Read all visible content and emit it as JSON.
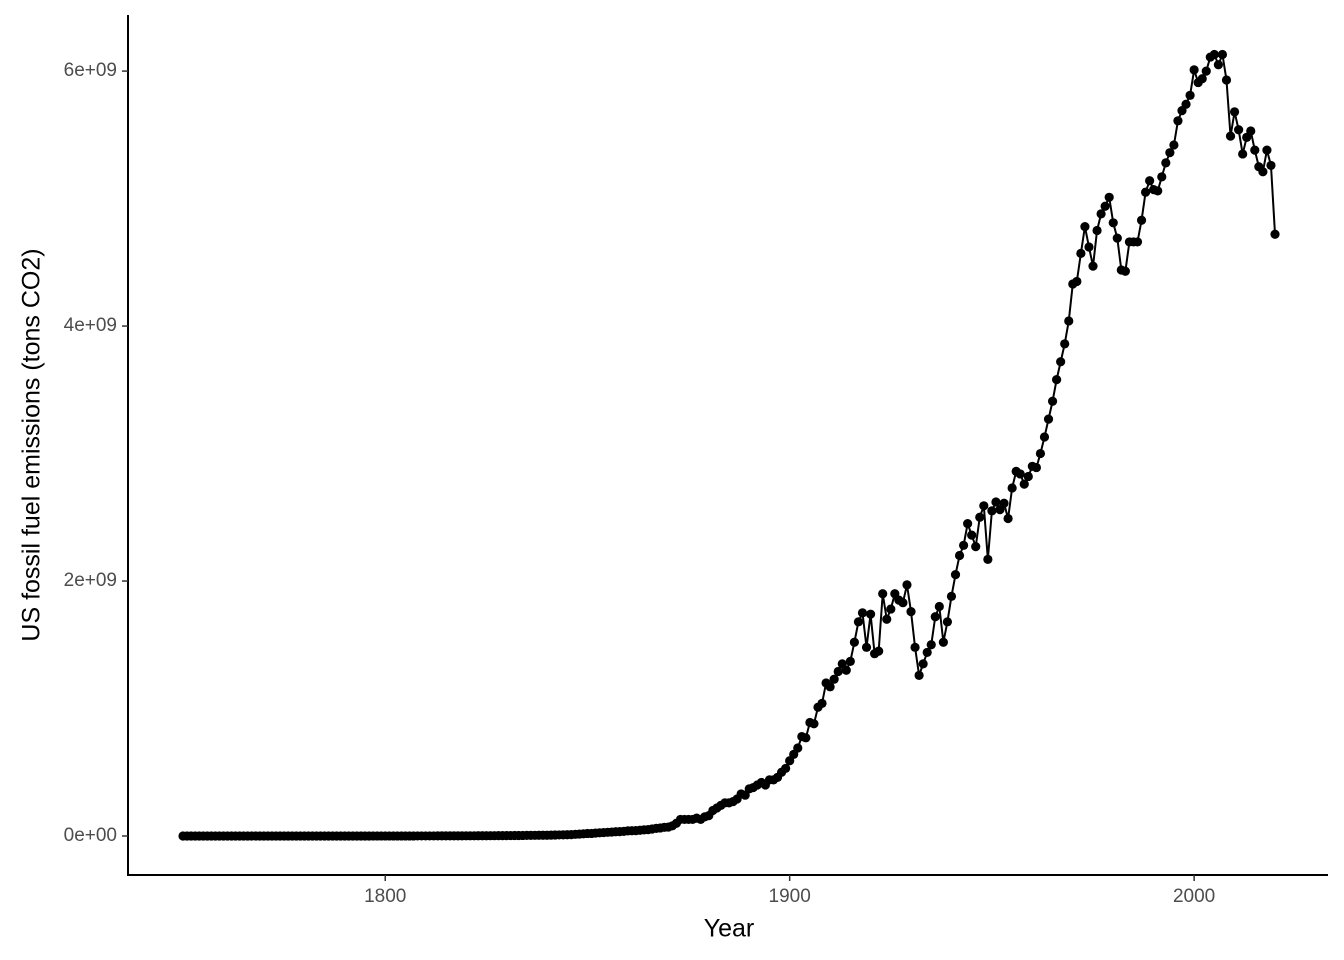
{
  "chart_data": {
    "type": "line",
    "x_label": "Year",
    "y_label": "US fossil fuel emissions (tons CO2)",
    "color": "#000000",
    "markers": true,
    "xlim": [
      1736.4,
      2033.1
    ],
    "ylim": [
      -306000000.0,
      6440000000.0
    ],
    "xticks": [
      1800,
      1900,
      2000
    ],
    "yticks": [
      {
        "value": 0,
        "label": "0e+00"
      },
      {
        "value": 2000000000.0,
        "label": "2e+09"
      },
      {
        "value": 4000000000.0,
        "label": "4e+09"
      },
      {
        "value": 6000000000.0,
        "label": "6e+09"
      }
    ],
    "x": [
      1750,
      1751,
      1752,
      1753,
      1754,
      1755,
      1756,
      1757,
      1758,
      1759,
      1760,
      1761,
      1762,
      1763,
      1764,
      1765,
      1766,
      1767,
      1768,
      1769,
      1770,
      1771,
      1772,
      1773,
      1774,
      1775,
      1776,
      1777,
      1778,
      1779,
      1780,
      1781,
      1782,
      1783,
      1784,
      1785,
      1786,
      1787,
      1788,
      1789,
      1790,
      1791,
      1792,
      1793,
      1794,
      1795,
      1796,
      1797,
      1798,
      1799,
      1800,
      1801,
      1802,
      1803,
      1804,
      1805,
      1806,
      1807,
      1808,
      1809,
      1810,
      1811,
      1812,
      1813,
      1814,
      1815,
      1816,
      1817,
      1818,
      1819,
      1820,
      1821,
      1822,
      1823,
      1824,
      1825,
      1826,
      1827,
      1828,
      1829,
      1830,
      1831,
      1832,
      1833,
      1834,
      1835,
      1836,
      1837,
      1838,
      1839,
      1840,
      1841,
      1842,
      1843,
      1844,
      1845,
      1846,
      1847,
      1848,
      1849,
      1850,
      1851,
      1852,
      1853,
      1854,
      1855,
      1856,
      1857,
      1858,
      1859,
      1860,
      1861,
      1862,
      1863,
      1864,
      1865,
      1866,
      1867,
      1868,
      1869,
      1870,
      1871,
      1872,
      1873,
      1874,
      1875,
      1876,
      1877,
      1878,
      1879,
      1880,
      1881,
      1882,
      1883,
      1884,
      1885,
      1886,
      1887,
      1888,
      1889,
      1890,
      1891,
      1892,
      1893,
      1894,
      1895,
      1896,
      1897,
      1898,
      1899,
      1900,
      1901,
      1902,
      1903,
      1904,
      1905,
      1906,
      1907,
      1908,
      1909,
      1910,
      1911,
      1912,
      1913,
      1914,
      1915,
      1916,
      1917,
      1918,
      1919,
      1920,
      1921,
      1922,
      1923,
      1924,
      1925,
      1926,
      1927,
      1928,
      1929,
      1930,
      1931,
      1932,
      1933,
      1934,
      1935,
      1936,
      1937,
      1938,
      1939,
      1940,
      1941,
      1942,
      1943,
      1944,
      1945,
      1946,
      1947,
      1948,
      1949,
      1950,
      1951,
      1952,
      1953,
      1954,
      1955,
      1956,
      1957,
      1958,
      1959,
      1960,
      1961,
      1962,
      1963,
      1964,
      1965,
      1966,
      1967,
      1968,
      1969,
      1970,
      1971,
      1972,
      1973,
      1974,
      1975,
      1976,
      1977,
      1978,
      1979,
      1980,
      1981,
      1982,
      1983,
      1984,
      1985,
      1986,
      1987,
      1988,
      1989,
      1990,
      1991,
      1992,
      1993,
      1994,
      1995,
      1996,
      1997,
      1998,
      1999,
      2000,
      2001,
      2002,
      2003,
      2004,
      2005,
      2006,
      2007,
      2008,
      2009,
      2010,
      2011,
      2012,
      2013,
      2014,
      2015,
      2016,
      2017,
      2018,
      2019,
      2020
    ],
    "values": [
      10000.0,
      10000.0,
      10000.0,
      10000.0,
      10000.0,
      10000.0,
      10000.0,
      10000.0,
      10000.0,
      10000.0,
      20000.0,
      20000.0,
      20000.0,
      20000.0,
      20000.0,
      20000.0,
      20000.0,
      20000.0,
      20000.0,
      20000.0,
      30000.0,
      30000.0,
      30000.0,
      30000.0,
      30000.0,
      30000.0,
      30000.0,
      30000.0,
      30000.0,
      30000.0,
      50000.0,
      50000.0,
      50000.0,
      50000.0,
      50000.0,
      50000.0,
      50000.0,
      50000.0,
      50000.0,
      50000.0,
      100000.0,
      120000.0,
      140000.0,
      160000.0,
      180000.0,
      200000.0,
      210000.0,
      220000.0,
      230000.0,
      240000.0,
      250000.0,
      270000.0,
      300000.0,
      320000.0,
      350000.0,
      380000.0,
      400000.0,
      430000.0,
      460000.0,
      480000.0,
      500000.0,
      550000.0,
      600000.0,
      650000.0,
      700000.0,
      750000.0,
      800000.0,
      900000.0,
      1000000.0,
      1100000.0,
      1200000.0,
      1300000.0,
      1500000.0,
      1600000.0,
      1800000.0,
      2000000.0,
      2200000.0,
      2400000.0,
      2600000.0,
      2800000.0,
      3000000.0,
      3300000.0,
      3600000.0,
      4000000.0,
      4300000.0,
      4600000.0,
      5000000.0,
      5300000.0,
      5600000.0,
      5900000.0,
      6000000.0,
      6800000.0,
      7500000.0,
      8300000.0,
      9000000.0,
      10000000.0,
      11000000.0,
      13000000.0,
      15000000.0,
      17000000.0,
      20000000.0,
      20000000.0,
      23000000.0,
      25000000.0,
      27000000.0,
      29000000.0,
      31000000.0,
      33000000.0,
      34000000.0,
      36000000.0,
      40000000.0,
      41000000.0,
      42000000.0,
      45000000.0,
      48000000.0,
      50000000.0,
      55000000.0,
      60000000.0,
      63000000.0,
      68000000.0,
      70000000.0,
      80000000.0,
      100000000.0,
      130000000.0,
      130000000.0,
      130000000.0,
      130000000.0,
      140000000.0,
      130000000.0,
      150000000.0,
      160000000.0,
      200000000.0,
      220000000.0,
      240000000.0,
      260000000.0,
      260000000.0,
      270000000.0,
      290000000.0,
      330000000.0,
      320000000.0,
      370000000.0,
      380000000.0,
      400000000.0,
      420000000.0,
      400000000.0,
      440000000.0,
      440000000.0,
      460000000.0,
      500000000.0,
      530000000.0,
      590000000.0,
      640000000.0,
      690000000.0,
      780000000.0,
      770000000.0,
      890000000.0,
      880000000.0,
      1010000000.0,
      1040000000.0,
      1200000000.0,
      1170000000.0,
      1230000000.0,
      1290000000.0,
      1350000000.0,
      1300000000.0,
      1370000000.0,
      1520000000.0,
      1680000000.0,
      1750000000.0,
      1480000000.0,
      1740000000.0,
      1430000000.0,
      1450000000.0,
      1900000000.0,
      1700000000.0,
      1780000000.0,
      1900000000.0,
      1850000000.0,
      1830000000.0,
      1970000000.0,
      1760000000.0,
      1480000000.0,
      1260000000.0,
      1350000000.0,
      1440000000.0,
      1500000000.0,
      1720000000.0,
      1800000000.0,
      1520000000.0,
      1680000000.0,
      1880000000.0,
      2050000000.0,
      2200000000.0,
      2280000000.0,
      2450000000.0,
      2360000000.0,
      2270000000.0,
      2500000000.0,
      2590000000.0,
      2170000000.0,
      2550000000.0,
      2620000000.0,
      2560000000.0,
      2610000000.0,
      2490000000.0,
      2730000000.0,
      2860000000.0,
      2840000000.0,
      2760000000.0,
      2820000000.0,
      2900000000.0,
      2890000000.0,
      3000000000.0,
      3130000000.0,
      3270000000.0,
      3410000000.0,
      3580000000.0,
      3720000000.0,
      3860000000.0,
      4040000000.0,
      4330000000.0,
      4350000000.0,
      4570000000.0,
      4780000000.0,
      4620000000.0,
      4470000000.0,
      4750000000.0,
      4880000000.0,
      4940000000.0,
      5010000000.0,
      4810000000.0,
      4690000000.0,
      4440000000.0,
      4430000000.0,
      4660000000.0,
      4660000000.0,
      4660000000.0,
      4830000000.0,
      5050000000.0,
      5140000000.0,
      5070000000.0,
      5060000000.0,
      5170000000.0,
      5280000000.0,
      5360000000.0,
      5420000000.0,
      5610000000.0,
      5690000000.0,
      5740000000.0,
      5810000000.0,
      6010000000.0,
      5910000000.0,
      5940000000.0,
      6000000000.0,
      6110000000.0,
      6130000000.0,
      6050000000.0,
      6130000000.0,
      5930000000.0,
      5490000000.0,
      5680000000.0,
      5540000000.0,
      5350000000.0,
      5480000000.0,
      5530000000.0,
      5380000000.0,
      5250000000.0,
      5210000000.0,
      5380000000.0,
      5260000000.0,
      4720000000.0
    ]
  }
}
